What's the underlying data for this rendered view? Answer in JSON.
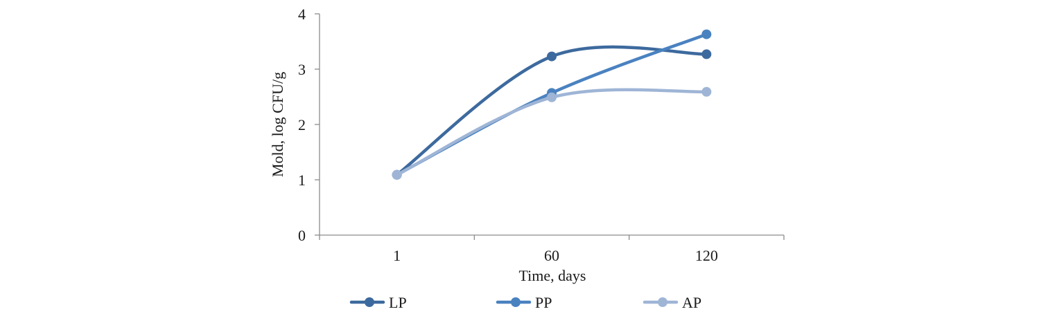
{
  "chart_data": {
    "type": "line",
    "title": "",
    "xlabel": "Time, days",
    "ylabel": "Mold, log CFU/g",
    "categories": [
      "1",
      "60",
      "120"
    ],
    "ylim": [
      0,
      4
    ],
    "yticks": [
      "0",
      "1",
      "2",
      "3",
      "4"
    ],
    "grid": false,
    "smooth": true,
    "legend_position": "bottom",
    "series": [
      {
        "name": "LP",
        "values": [
          1.09,
          3.23,
          3.27
        ],
        "color": "#3d6a9e"
      },
      {
        "name": "PP",
        "values": [
          1.09,
          2.57,
          3.63
        ],
        "color": "#4a82c0"
      },
      {
        "name": "AP",
        "values": [
          1.09,
          2.49,
          2.59
        ],
        "color": "#9fb5d6"
      }
    ]
  }
}
